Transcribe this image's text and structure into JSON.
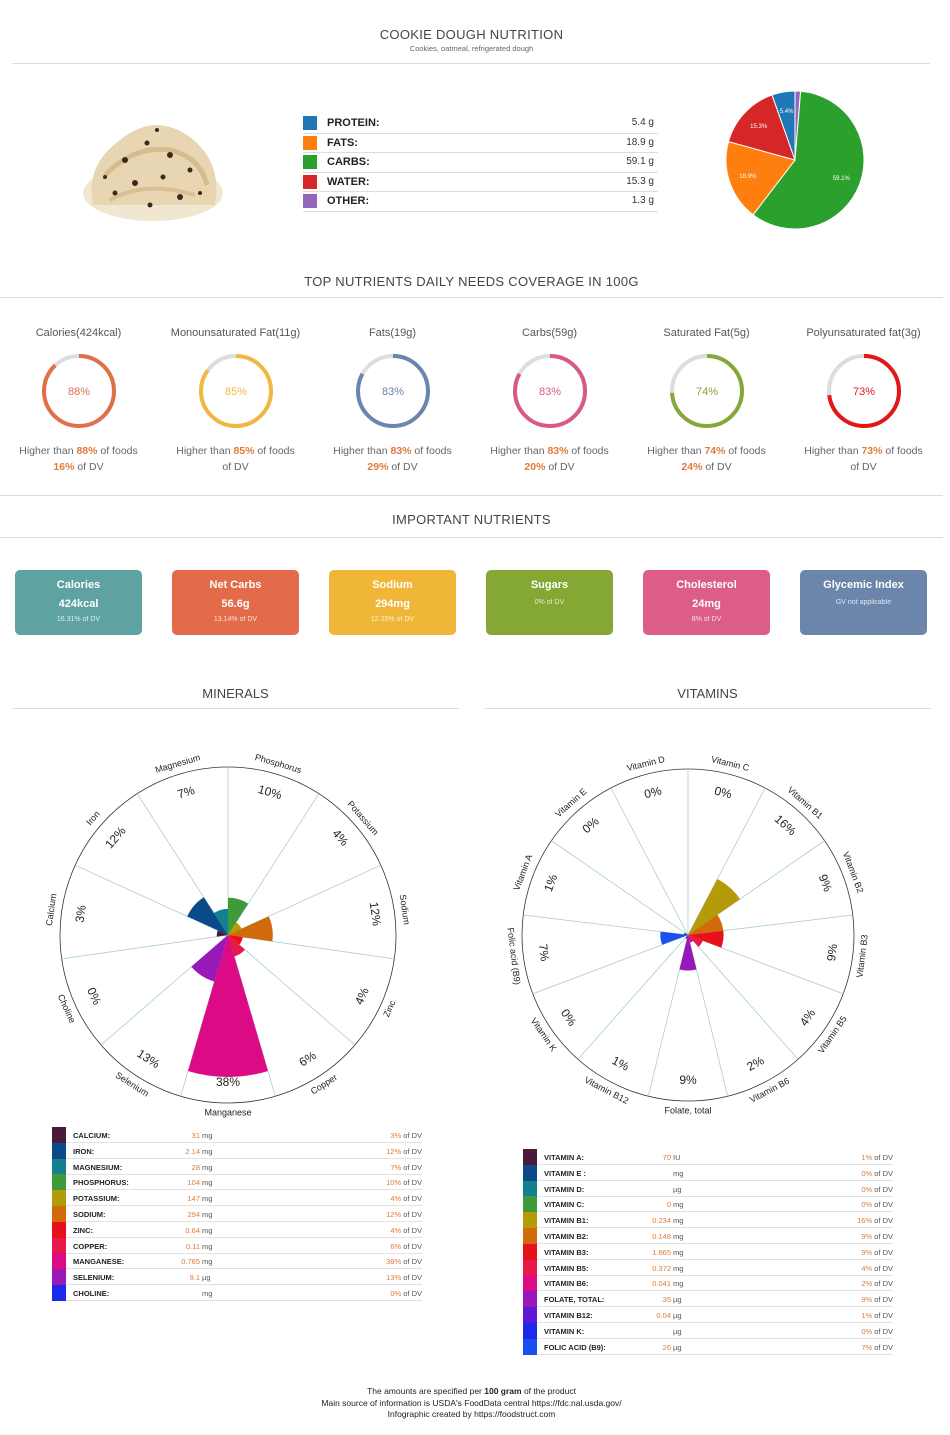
{
  "header": {
    "title": "COOKIE DOUGH NUTRITION",
    "subtitle": "Cookies, oatmeal, refrigerated dough"
  },
  "macros": [
    {
      "name": "PROTEIN:",
      "value": "5.4 g",
      "color": "#1f77b4",
      "pct": 5.4,
      "label": "5.4%"
    },
    {
      "name": "FATS:",
      "value": "18.9 g",
      "color": "#ff7f0e",
      "pct": 18.9,
      "label": "18.9%"
    },
    {
      "name": "CARBS:",
      "value": "59.1 g",
      "color": "#2ca02c",
      "pct": 59.1,
      "label": "59.1%"
    },
    {
      "name": "WATER:",
      "value": "15.3 g",
      "color": "#d62728",
      "pct": 15.3,
      "label": "15.3%"
    },
    {
      "name": "OTHER:",
      "value": "1.3 g",
      "color": "#9467bd",
      "pct": 1.3,
      "label": ""
    }
  ],
  "coverage_title": "TOP NUTRIENTS DAILY NEEDS COVERAGE IN 100G",
  "coverage": [
    {
      "title": "Calories(424kcal)",
      "pct": 88,
      "label": "88%",
      "color": "#e0704a",
      "higher": "88%",
      "dv": "16%"
    },
    {
      "title": "Monounsaturated Fat(11g)",
      "pct": 85,
      "label": "85%",
      "color": "#f0b840",
      "higher": "85%",
      "dv": ""
    },
    {
      "title": "Fats(19g)",
      "pct": 83,
      "label": "83%",
      "color": "#6a85b0",
      "higher": "83%",
      "dv": "29%"
    },
    {
      "title": "Carbs(59g)",
      "pct": 83,
      "label": "83%",
      "color": "#d65a82",
      "higher": "83%",
      "dv": "20%"
    },
    {
      "title": "Saturated Fat(5g)",
      "pct": 74,
      "label": "74%",
      "color": "#86a83a",
      "higher": "74%",
      "dv": "24%"
    },
    {
      "title": "Polyunsaturated fat(3g)",
      "pct": 73,
      "label": "73%",
      "color": "#e01818",
      "higher": "73%",
      "dv": ""
    }
  ],
  "coverage_texts": {
    "prefix": "Higher than ",
    "suffix": " of foods",
    "dv_suffix": " of DV"
  },
  "important_title": "IMPORTANT NUTRIENTS",
  "cards": [
    {
      "label": "Calories",
      "value": "424kcal",
      "pct": "16.31% of DV",
      "color": "#5fa2a2"
    },
    {
      "label": "Net Carbs",
      "value": "56.6g",
      "pct": "13.14% of DV",
      "color": "#e36b4a"
    },
    {
      "label": "Sodium",
      "value": "294mg",
      "pct": "12.25% of DV",
      "color": "#f0b638"
    },
    {
      "label": "Sugars",
      "value": "",
      "pct": "0% of DV",
      "color": "#85a734"
    },
    {
      "label": "Cholesterol",
      "value": "24mg",
      "pct": "8% of DV",
      "color": "#dc5d86"
    },
    {
      "label": "Glycemic Index",
      "value": "",
      "pct": "GV not applicable",
      "color": "#6c85aa"
    }
  ],
  "minerals_title": "MINERALS",
  "vitamins_title": "VITAMINS",
  "minerals": [
    {
      "name": "Calcium",
      "table_name": "CALCIUM:",
      "amount": "31",
      "unit": "mg",
      "dv": 3,
      "dv_text": "3%",
      "color": "#4a1a3a"
    },
    {
      "name": "Iron",
      "table_name": "IRON:",
      "amount": "2.14",
      "unit": "mg",
      "dv": 12,
      "dv_text": "12%",
      "color": "#0a4a88"
    },
    {
      "name": "Magnesium",
      "table_name": "MAGNESIUM:",
      "amount": "28",
      "unit": "mg",
      "dv": 7,
      "dv_text": "7%",
      "color": "#12808e"
    },
    {
      "name": "Phosphorus",
      "table_name": "PHOSPHORUS:",
      "amount": "104",
      "unit": "mg",
      "dv": 10,
      "dv_text": "10%",
      "color": "#3f9a3a"
    },
    {
      "name": "Potassium",
      "table_name": "POTASSIUM:",
      "amount": "147",
      "unit": "mg",
      "dv": 4,
      "dv_text": "4%",
      "color": "#b59a0a"
    },
    {
      "name": "Sodium",
      "table_name": "SODIUM:",
      "amount": "294",
      "unit": "mg",
      "dv": 12,
      "dv_text": "12%",
      "color": "#d06a0a"
    },
    {
      "name": "Zinc",
      "table_name": "ZINC:",
      "amount": "0.64",
      "unit": "mg",
      "dv": 4,
      "dv_text": "4%",
      "color": "#e8101a"
    },
    {
      "name": "Copper",
      "table_name": "COPPER:",
      "amount": "0.11",
      "unit": "mg",
      "dv": 6,
      "dv_text": "6%",
      "color": "#e81848"
    },
    {
      "name": "Manganese",
      "table_name": "MANGANESE:",
      "amount": "0.765",
      "unit": "mg",
      "dv": 38,
      "dv_text": "38%",
      "color": "#dc0a84"
    },
    {
      "name": "Selenium",
      "table_name": "SELENIUM:",
      "amount": "9.1",
      "unit": "µg",
      "dv": 13,
      "dv_text": "13%",
      "color": "#9818b8"
    },
    {
      "name": "Choline",
      "table_name": "CHOLINE:",
      "amount": "",
      "unit": "mg",
      "dv": 0,
      "dv_text": "0%",
      "color": "#1a2ae8"
    }
  ],
  "vitamins": [
    {
      "name": "Vitamin C",
      "table_name": "VITAMIN C:",
      "amount": "0",
      "unit": "mg",
      "dv": 0,
      "dv_text": "0%",
      "color": "#3f9a3a"
    },
    {
      "name": "Vitamin B1",
      "table_name": "VITAMIN B1:",
      "amount": "0.234",
      "unit": "mg",
      "dv": 16,
      "dv_text": "16%",
      "color": "#b59a0a"
    },
    {
      "name": "Vitamin B2",
      "table_name": "VITAMIN B2:",
      "amount": "0.148",
      "unit": "mg",
      "dv": 9,
      "dv_text": "9%",
      "color": "#d06a0a"
    },
    {
      "name": "Vitamin B3",
      "table_name": "VITAMIN B3:",
      "amount": "1.865",
      "unit": "mg",
      "dv": 9,
      "dv_text": "9%",
      "color": "#e8101a"
    },
    {
      "name": "Vitamin B5",
      "table_name": "VITAMIN B5:",
      "amount": "0.372",
      "unit": "mg",
      "dv": 4,
      "dv_text": "4%",
      "color": "#e81848"
    },
    {
      "name": "Vitamin B6",
      "table_name": "VITAMIN B6:",
      "amount": "0.041",
      "unit": "mg",
      "dv": 2,
      "dv_text": "2%",
      "color": "#dc0a84"
    },
    {
      "name": "Folate, total",
      "table_name": "FOLATE, TOTAL:",
      "amount": "35",
      "unit": "µg",
      "dv": 9,
      "dv_text": "9%",
      "color": "#9818b8"
    },
    {
      "name": "Vitamin B12",
      "table_name": "VITAMIN B12:",
      "amount": "0.04",
      "unit": "µg",
      "dv": 1,
      "dv_text": "1%",
      "color": "#6018d8"
    },
    {
      "name": "Vitamin K",
      "table_name": "VITAMIN K:",
      "amount": "",
      "unit": "µg",
      "dv": 0,
      "dv_text": "0%",
      "color": "#1a2ae8"
    },
    {
      "name": "Folic acid (B9)",
      "table_name": "FOLIC ACID (B9):",
      "amount": "26",
      "unit": "µg",
      "dv": 7,
      "dv_text": "7%",
      "color": "#1a50f0"
    },
    {
      "name": "Vitamin A",
      "table_name": "VITAMIN A:",
      "amount": "70",
      "unit": "IU",
      "dv": 1,
      "dv_text": "1%",
      "color": "#4a1a3a"
    },
    {
      "name": "Vitamin E",
      "table_name": "VITAMIN E :",
      "amount": "",
      "unit": "mg",
      "dv": 0,
      "dv_text": "0%",
      "color": "#0a4a88"
    },
    {
      "name": "Vitamin D",
      "table_name": "VITAMIN D:",
      "amount": "",
      "unit": "µg",
      "dv": 0,
      "dv_text": "0%",
      "color": "#12808e"
    }
  ],
  "vitamins_table_order": [
    10,
    11,
    12,
    0,
    1,
    2,
    3,
    4,
    5,
    6,
    7,
    8,
    9
  ],
  "of_dv": " of DV",
  "footer": {
    "line1a": "The amounts are specified per ",
    "line1b": "100 gram",
    "line1c": " of the product",
    "line2": "Main source of information is USDA's FoodData central https://fdc.nal.usda.gov/",
    "line3": "Infographic created by https://foodstruct.com"
  },
  "chart_data": [
    {
      "type": "pie",
      "title": "",
      "categories": [
        "Protein",
        "Fats",
        "Carbs",
        "Water",
        "Other"
      ],
      "values": [
        5.4,
        18.9,
        59.1,
        15.3,
        1.3
      ]
    },
    {
      "type": "bar",
      "title": "MINERALS",
      "categories": [
        "Calcium",
        "Iron",
        "Magnesium",
        "Phosphorus",
        "Potassium",
        "Sodium",
        "Zinc",
        "Copper",
        "Manganese",
        "Selenium",
        "Choline"
      ],
      "values": [
        3,
        12,
        7,
        10,
        4,
        12,
        4,
        6,
        38,
        13,
        0
      ],
      "ylabel": "% of DV"
    },
    {
      "type": "bar",
      "title": "VITAMINS",
      "categories": [
        "Vitamin C",
        "Vitamin B1",
        "Vitamin B2",
        "Vitamin B3",
        "Vitamin B5",
        "Vitamin B6",
        "Folate, total",
        "Vitamin B12",
        "Vitamin K",
        "Folic acid (B9)",
        "Vitamin A",
        "Vitamin E",
        "Vitamin D"
      ],
      "values": [
        0,
        16,
        9,
        9,
        4,
        2,
        9,
        1,
        0,
        7,
        1,
        0,
        0
      ],
      "ylabel": "% of DV"
    }
  ]
}
